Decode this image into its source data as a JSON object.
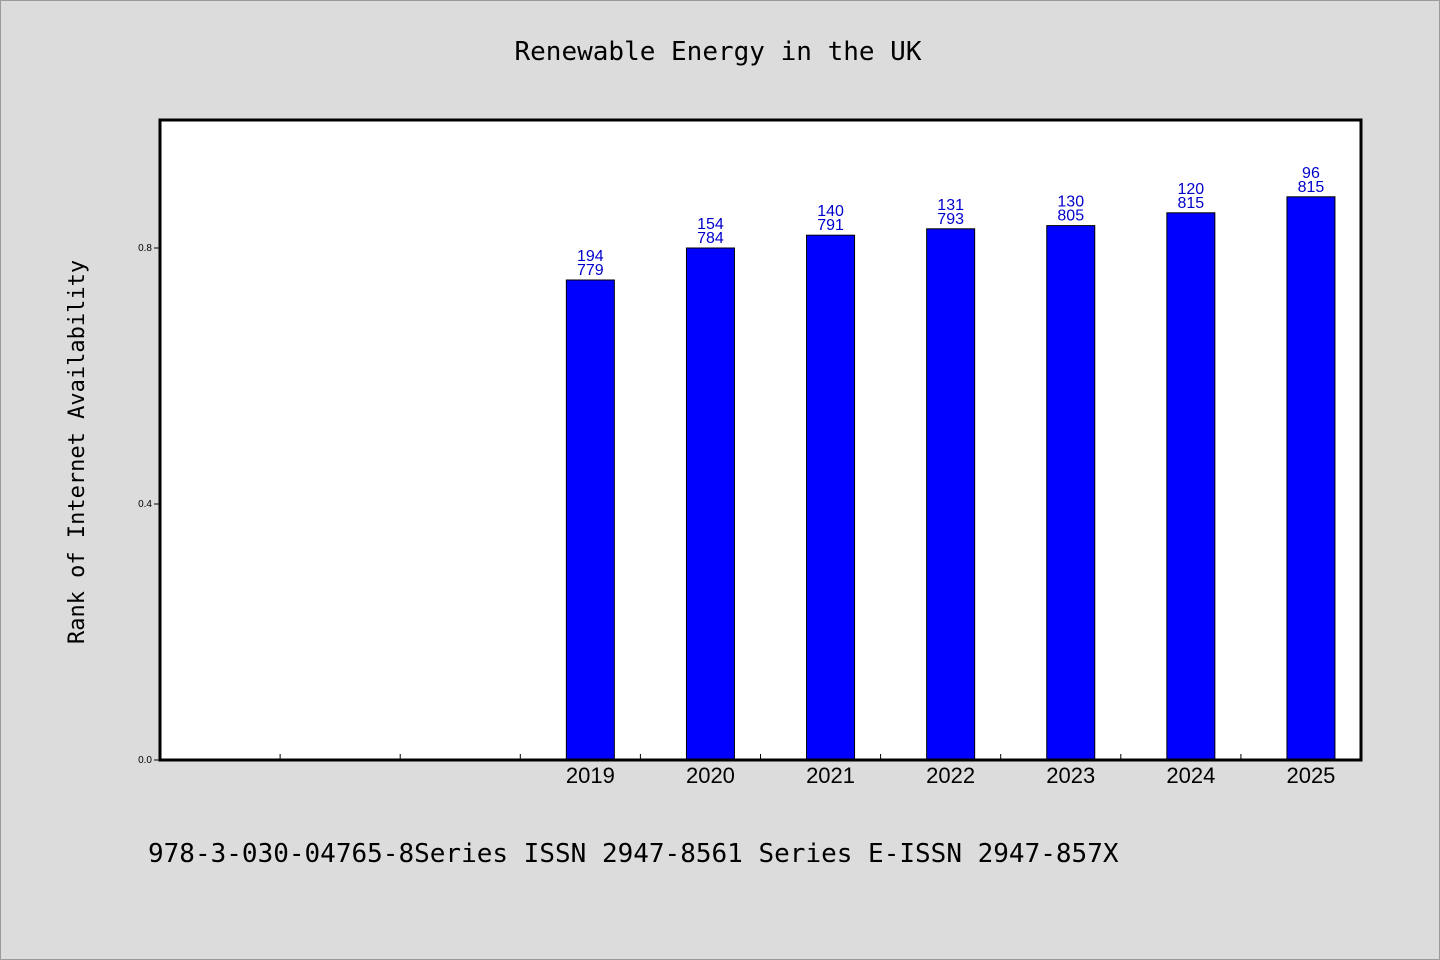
{
  "chart_data": {
    "type": "bar",
    "title": "Renewable Energy in the UK",
    "ylabel": "Rank of Internet Availability",
    "xlabel": "",
    "categories": [
      "",
      "",
      "",
      "2019",
      "2020",
      "2021",
      "2022",
      "2023",
      "2024",
      "2025"
    ],
    "values": [
      null,
      null,
      null,
      0.75,
      0.8,
      0.82,
      0.83,
      0.835,
      0.855,
      0.88
    ],
    "bar_labels": [
      null,
      null,
      null,
      [
        "194",
        "779"
      ],
      [
        "154",
        "784"
      ],
      [
        "140",
        "791"
      ],
      [
        "131",
        "793"
      ],
      [
        "130",
        "805"
      ],
      [
        "120",
        "815"
      ],
      [
        "96",
        "815"
      ]
    ],
    "ylim": [
      0,
      1.0
    ],
    "yticks": [
      0.0,
      0.4,
      0.8
    ],
    "ytick_labels": [
      "0.0",
      "0.4",
      "0.8"
    ],
    "bar_color": "#0000ff",
    "label_color": "#0000cc",
    "grid": false,
    "legend": "none"
  },
  "footer": {
    "text": "978-3-030-04765-8Series ISSN 2947-8561 Series E-ISSN 2947-857X"
  },
  "colors": {
    "background": "#dcdcdc",
    "plot_background": "#ffffff"
  }
}
